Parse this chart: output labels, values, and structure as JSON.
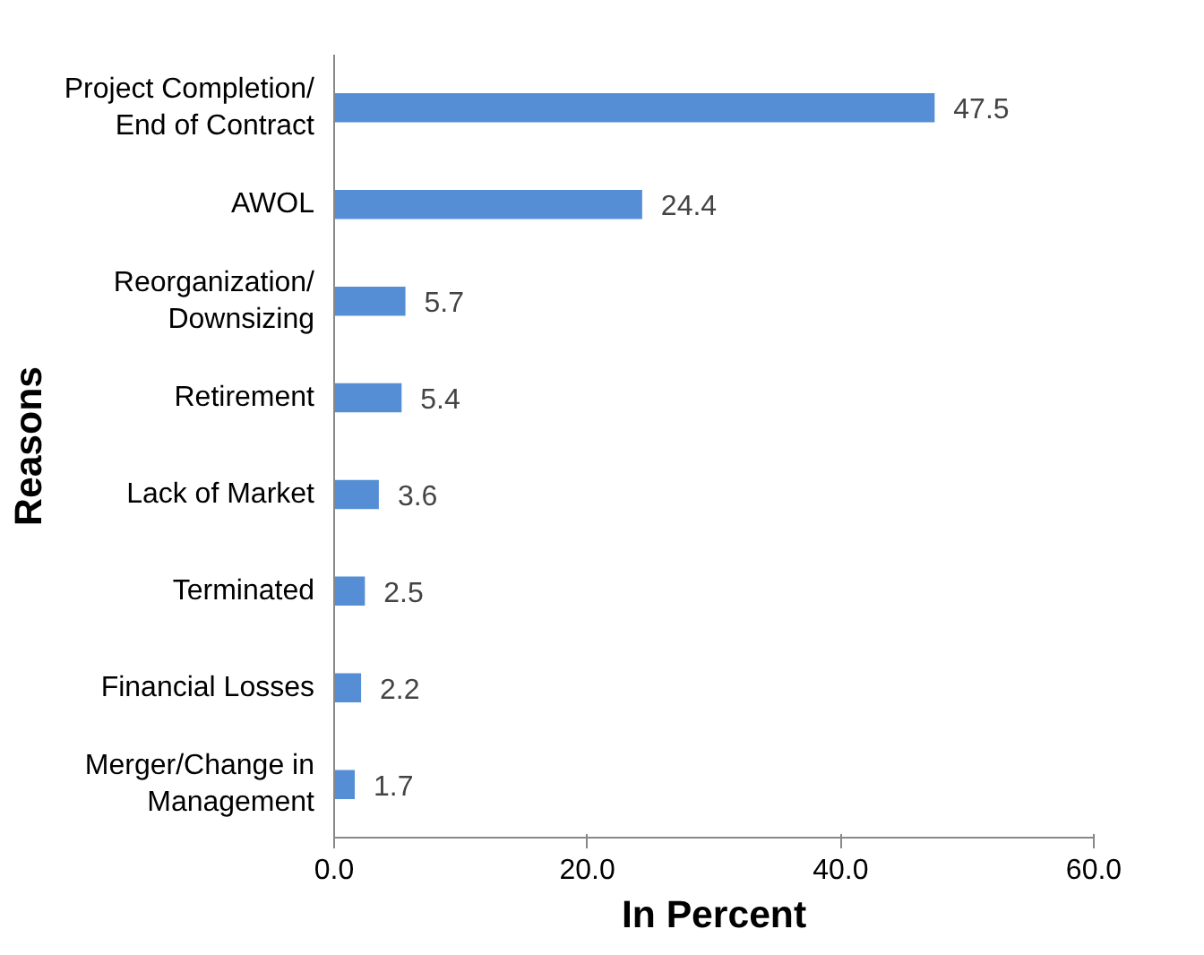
{
  "chart_data": {
    "type": "bar",
    "orientation": "horizontal",
    "ylabel": "Reasons",
    "xlabel": "In Percent",
    "categories": [
      "Project Completion/\nEnd of Contract",
      "AWOL",
      "Reorganization/\nDownsizing",
      "Retirement",
      "Lack of Market",
      "Terminated",
      "Financial Losses",
      "Merger/Change in\nManagement"
    ],
    "values": [
      47.5,
      24.4,
      5.7,
      5.4,
      3.6,
      2.5,
      2.2,
      1.7
    ],
    "color": "#558ed5",
    "xlim": [
      0,
      60
    ],
    "xticks": [
      {
        "value": 0,
        "label": "0.0"
      },
      {
        "value": 20,
        "label": "20.0"
      },
      {
        "value": 40,
        "label": "40.0"
      },
      {
        "value": 60,
        "label": "60.0"
      }
    ],
    "data_labels": true,
    "grid": false
  }
}
